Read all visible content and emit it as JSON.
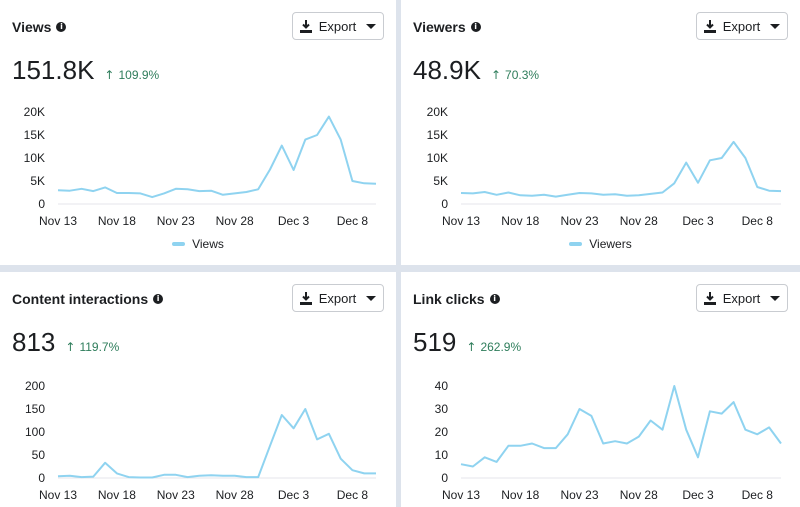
{
  "export_label": "Export",
  "colors": {
    "line": "#8fd3f0",
    "positive": "#2e7d5b"
  },
  "icons": {
    "info": "info-icon",
    "download": "download-icon",
    "caret": "caret-down-icon",
    "trend": "arrow-up-icon"
  },
  "cards": [
    {
      "title": "Views",
      "value": "151.8K",
      "change": "109.9%",
      "legend": "Views"
    },
    {
      "title": "Viewers",
      "value": "48.9K",
      "change": "70.3%",
      "legend": "Viewers"
    },
    {
      "title": "Content interactions",
      "value": "813",
      "change": "119.7%",
      "legend": ""
    },
    {
      "title": "Link clicks",
      "value": "519",
      "change": "262.9%",
      "legend": ""
    }
  ],
  "chart_data": [
    {
      "type": "line",
      "title": "Views",
      "x_labels": [
        "Nov 13",
        "Nov 18",
        "Nov 23",
        "Nov 28",
        "Dec 3",
        "Dec 8"
      ],
      "y_ticks": [
        "0",
        "5K",
        "10K",
        "15K",
        "20K"
      ],
      "ylim": [
        0,
        20000
      ],
      "series": [
        {
          "name": "Views",
          "values": [
            3000,
            2900,
            3300,
            2800,
            3600,
            2400,
            2400,
            2300,
            1500,
            2300,
            3300,
            3200,
            2800,
            2900,
            2000,
            2300,
            2600,
            3200,
            7500,
            12700,
            7400,
            14000,
            15000,
            19000,
            14000,
            5000,
            4500,
            4400
          ]
        }
      ]
    },
    {
      "type": "line",
      "title": "Viewers",
      "x_labels": [
        "Nov 13",
        "Nov 18",
        "Nov 23",
        "Nov 28",
        "Dec 3",
        "Dec 8"
      ],
      "y_ticks": [
        "0",
        "5K",
        "10K",
        "15K",
        "20K"
      ],
      "ylim": [
        0,
        20000
      ],
      "series": [
        {
          "name": "Viewers",
          "values": [
            2400,
            2300,
            2600,
            2000,
            2500,
            1900,
            1800,
            2000,
            1600,
            2000,
            2400,
            2300,
            2000,
            2100,
            1800,
            1900,
            2200,
            2500,
            4500,
            9000,
            4600,
            9500,
            10000,
            13500,
            10000,
            3700,
            2900,
            2800
          ]
        }
      ]
    },
    {
      "type": "line",
      "title": "Content interactions",
      "x_labels": [
        "Nov 13",
        "Nov 18",
        "Nov 23",
        "Nov 28",
        "Dec 3",
        "Dec 8"
      ],
      "y_ticks": [
        "0",
        "50",
        "100",
        "150",
        "200"
      ],
      "ylim": [
        0,
        200
      ],
      "series": [
        {
          "values": [
            4,
            5,
            2,
            3,
            33,
            10,
            2,
            1,
            1,
            7,
            7,
            2,
            5,
            6,
            5,
            5,
            2,
            2,
            70,
            137,
            108,
            150,
            84,
            96,
            42,
            17,
            10,
            10
          ]
        }
      ]
    },
    {
      "type": "line",
      "title": "Link clicks",
      "x_labels": [
        "Nov 13",
        "Nov 18",
        "Nov 23",
        "Nov 28",
        "Dec 3",
        "Dec 8"
      ],
      "y_ticks": [
        "0",
        "10",
        "20",
        "30",
        "40"
      ],
      "ylim": [
        0,
        40
      ],
      "series": [
        {
          "values": [
            6,
            5,
            9,
            7,
            14,
            14,
            15,
            13,
            13,
            19,
            30,
            27,
            15,
            16,
            15,
            18,
            25,
            21,
            40,
            21,
            9,
            29,
            28,
            33,
            21,
            19,
            22,
            15
          ]
        }
      ]
    }
  ]
}
